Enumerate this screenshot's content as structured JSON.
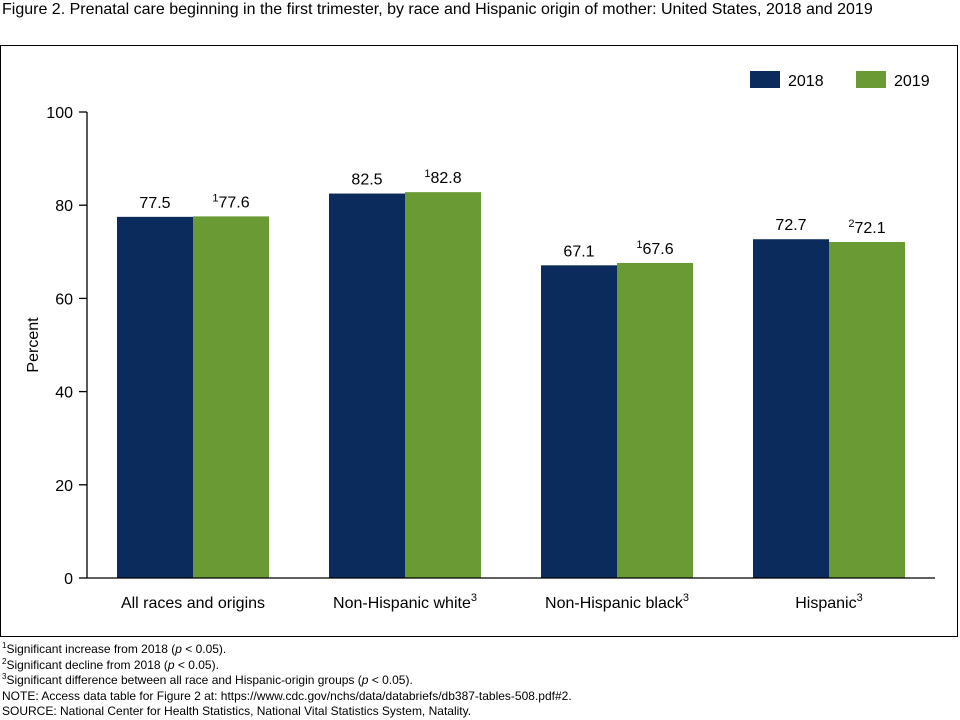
{
  "title": "Figure 2. Prenatal care beginning in the first trimester, by race and Hispanic origin of mother: United States, 2018 and 2019",
  "colors": {
    "2018": "#0a2b5c",
    "2019": "#6a9a34"
  },
  "chart_data": {
    "type": "bar",
    "categories": [
      "All races and origins",
      "Non-Hispanic white",
      "Non-Hispanic black",
      "Hispanic"
    ],
    "category_superscripts": [
      "",
      "3",
      "3",
      "3"
    ],
    "series": [
      {
        "name": "2018",
        "values": [
          77.5,
          82.5,
          67.1,
          72.7
        ],
        "label_superscripts": [
          "",
          "",
          "",
          ""
        ]
      },
      {
        "name": "2019",
        "values": [
          77.6,
          82.8,
          67.6,
          72.1
        ],
        "label_superscripts": [
          "1",
          "1",
          "1",
          "2"
        ]
      }
    ],
    "ylabel": "Percent",
    "ylim": [
      0,
      100
    ],
    "yticks": [
      0,
      20,
      40,
      60,
      80,
      100
    ],
    "grid": false,
    "legend_position": "top-right"
  },
  "footnotes": [
    {
      "sup": "1",
      "text": "Significant increase from 2018 (",
      "italic": "p",
      "tail": " < 0.05)."
    },
    {
      "sup": "2",
      "text": "Significant decline from 2018 (",
      "italic": "p",
      "tail": " < 0.05)."
    },
    {
      "sup": "3",
      "text": "Significant difference between all race and Hispanic-origin groups (",
      "italic": "p",
      "tail": " < 0.05)."
    }
  ],
  "note": "NOTE: Access data table for Figure 2 at: https://www.cdc.gov/nchs/data/databriefs/db387-tables-508.pdf#2.",
  "source": "SOURCE: National Center for Health Statistics, National Vital Statistics System, Natality."
}
